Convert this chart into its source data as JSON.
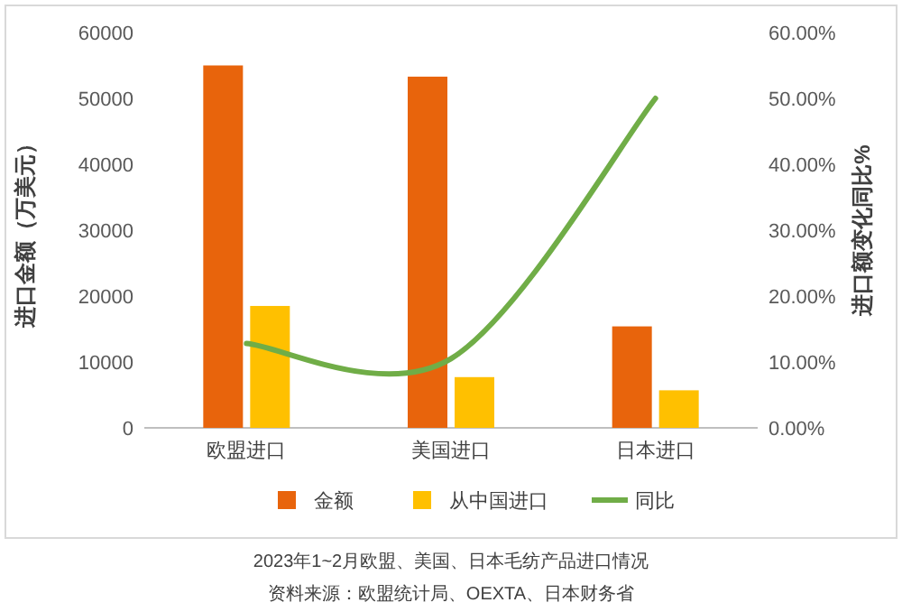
{
  "chart_data": {
    "type": "bar",
    "categories": [
      "欧盟进口",
      "美国进口",
      "日本进口"
    ],
    "series": [
      {
        "name": "金额",
        "color": "#e8640c",
        "values": [
          55000,
          53300,
          15400
        ]
      },
      {
        "name": "从中国进口",
        "color": "#ffc000",
        "values": [
          18500,
          7700,
          5700
        ]
      },
      {
        "name": "同比",
        "color": "#70ad47",
        "type": "line",
        "axis": "y2",
        "values": [
          12.8,
          10.5,
          50.0
        ]
      }
    ],
    "ylabel": "进口金额（万美元）",
    "y2label": "进口额变化同比%",
    "ylim": [
      0,
      60000
    ],
    "yticks": [
      0,
      10000,
      20000,
      30000,
      40000,
      50000,
      60000
    ],
    "y2lim": [
      0,
      60
    ],
    "y2ticks": [
      {
        "value": 0,
        "label": "0.00%"
      },
      {
        "value": 10,
        "label": "10.00%"
      },
      {
        "value": 20,
        "label": "20.00%"
      },
      {
        "value": 30,
        "label": "30.00%"
      },
      {
        "value": 40,
        "label": "40.00%"
      },
      {
        "value": 50,
        "label": "50.00%"
      },
      {
        "value": 60,
        "label": "60.00%"
      }
    ],
    "legend": "bottom",
    "grid": false,
    "annotations": [
      "2023年1~2月欧盟、美国、日本毛纺产品进口情况",
      "资料来源：欧盟统计局、OEXTA、日本财务省"
    ]
  }
}
